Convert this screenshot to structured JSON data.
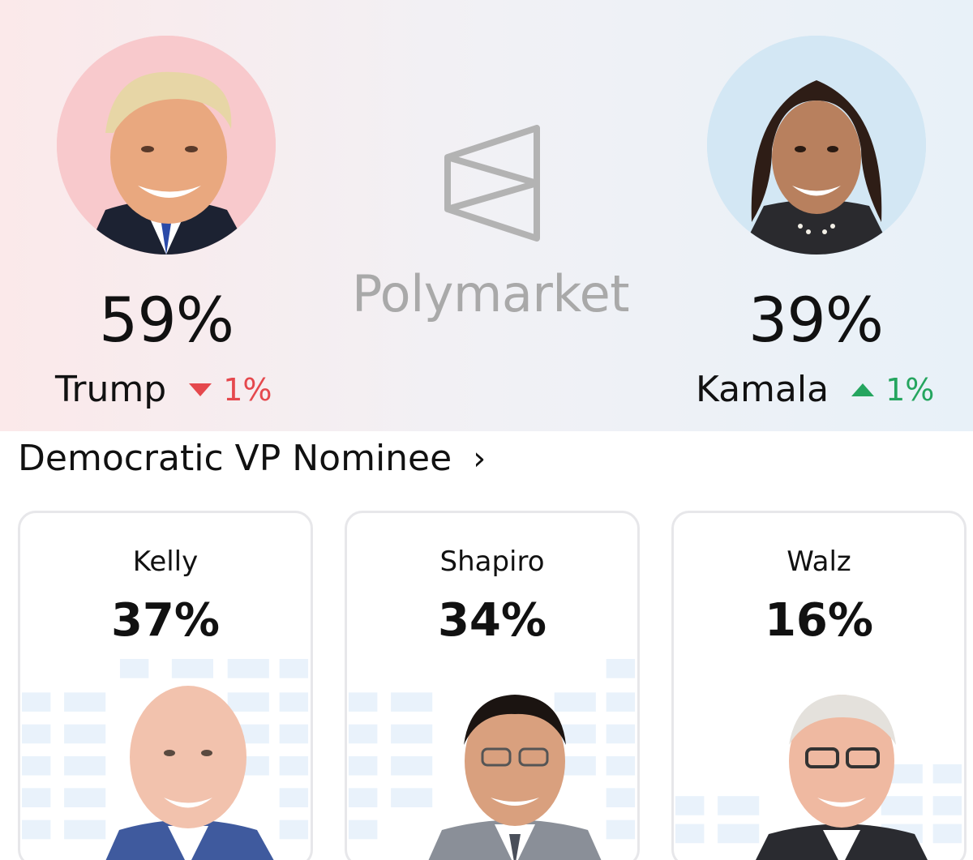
{
  "hero": {
    "left": {
      "name": "Trump",
      "percent": "59%",
      "change": "1%",
      "direction": "down",
      "color": "#e5484d"
    },
    "right": {
      "name": "Kamala",
      "percent": "39%",
      "change": "1%",
      "direction": "up",
      "color": "#25a55f"
    },
    "brand": "Polymarket"
  },
  "section": {
    "title": "Democratic VP Nominee",
    "chevron": "›"
  },
  "cards": [
    {
      "name": "Kelly",
      "percent": "37%"
    },
    {
      "name": "Shapiro",
      "percent": "34%"
    },
    {
      "name": "Walz",
      "percent": "16%"
    }
  ]
}
